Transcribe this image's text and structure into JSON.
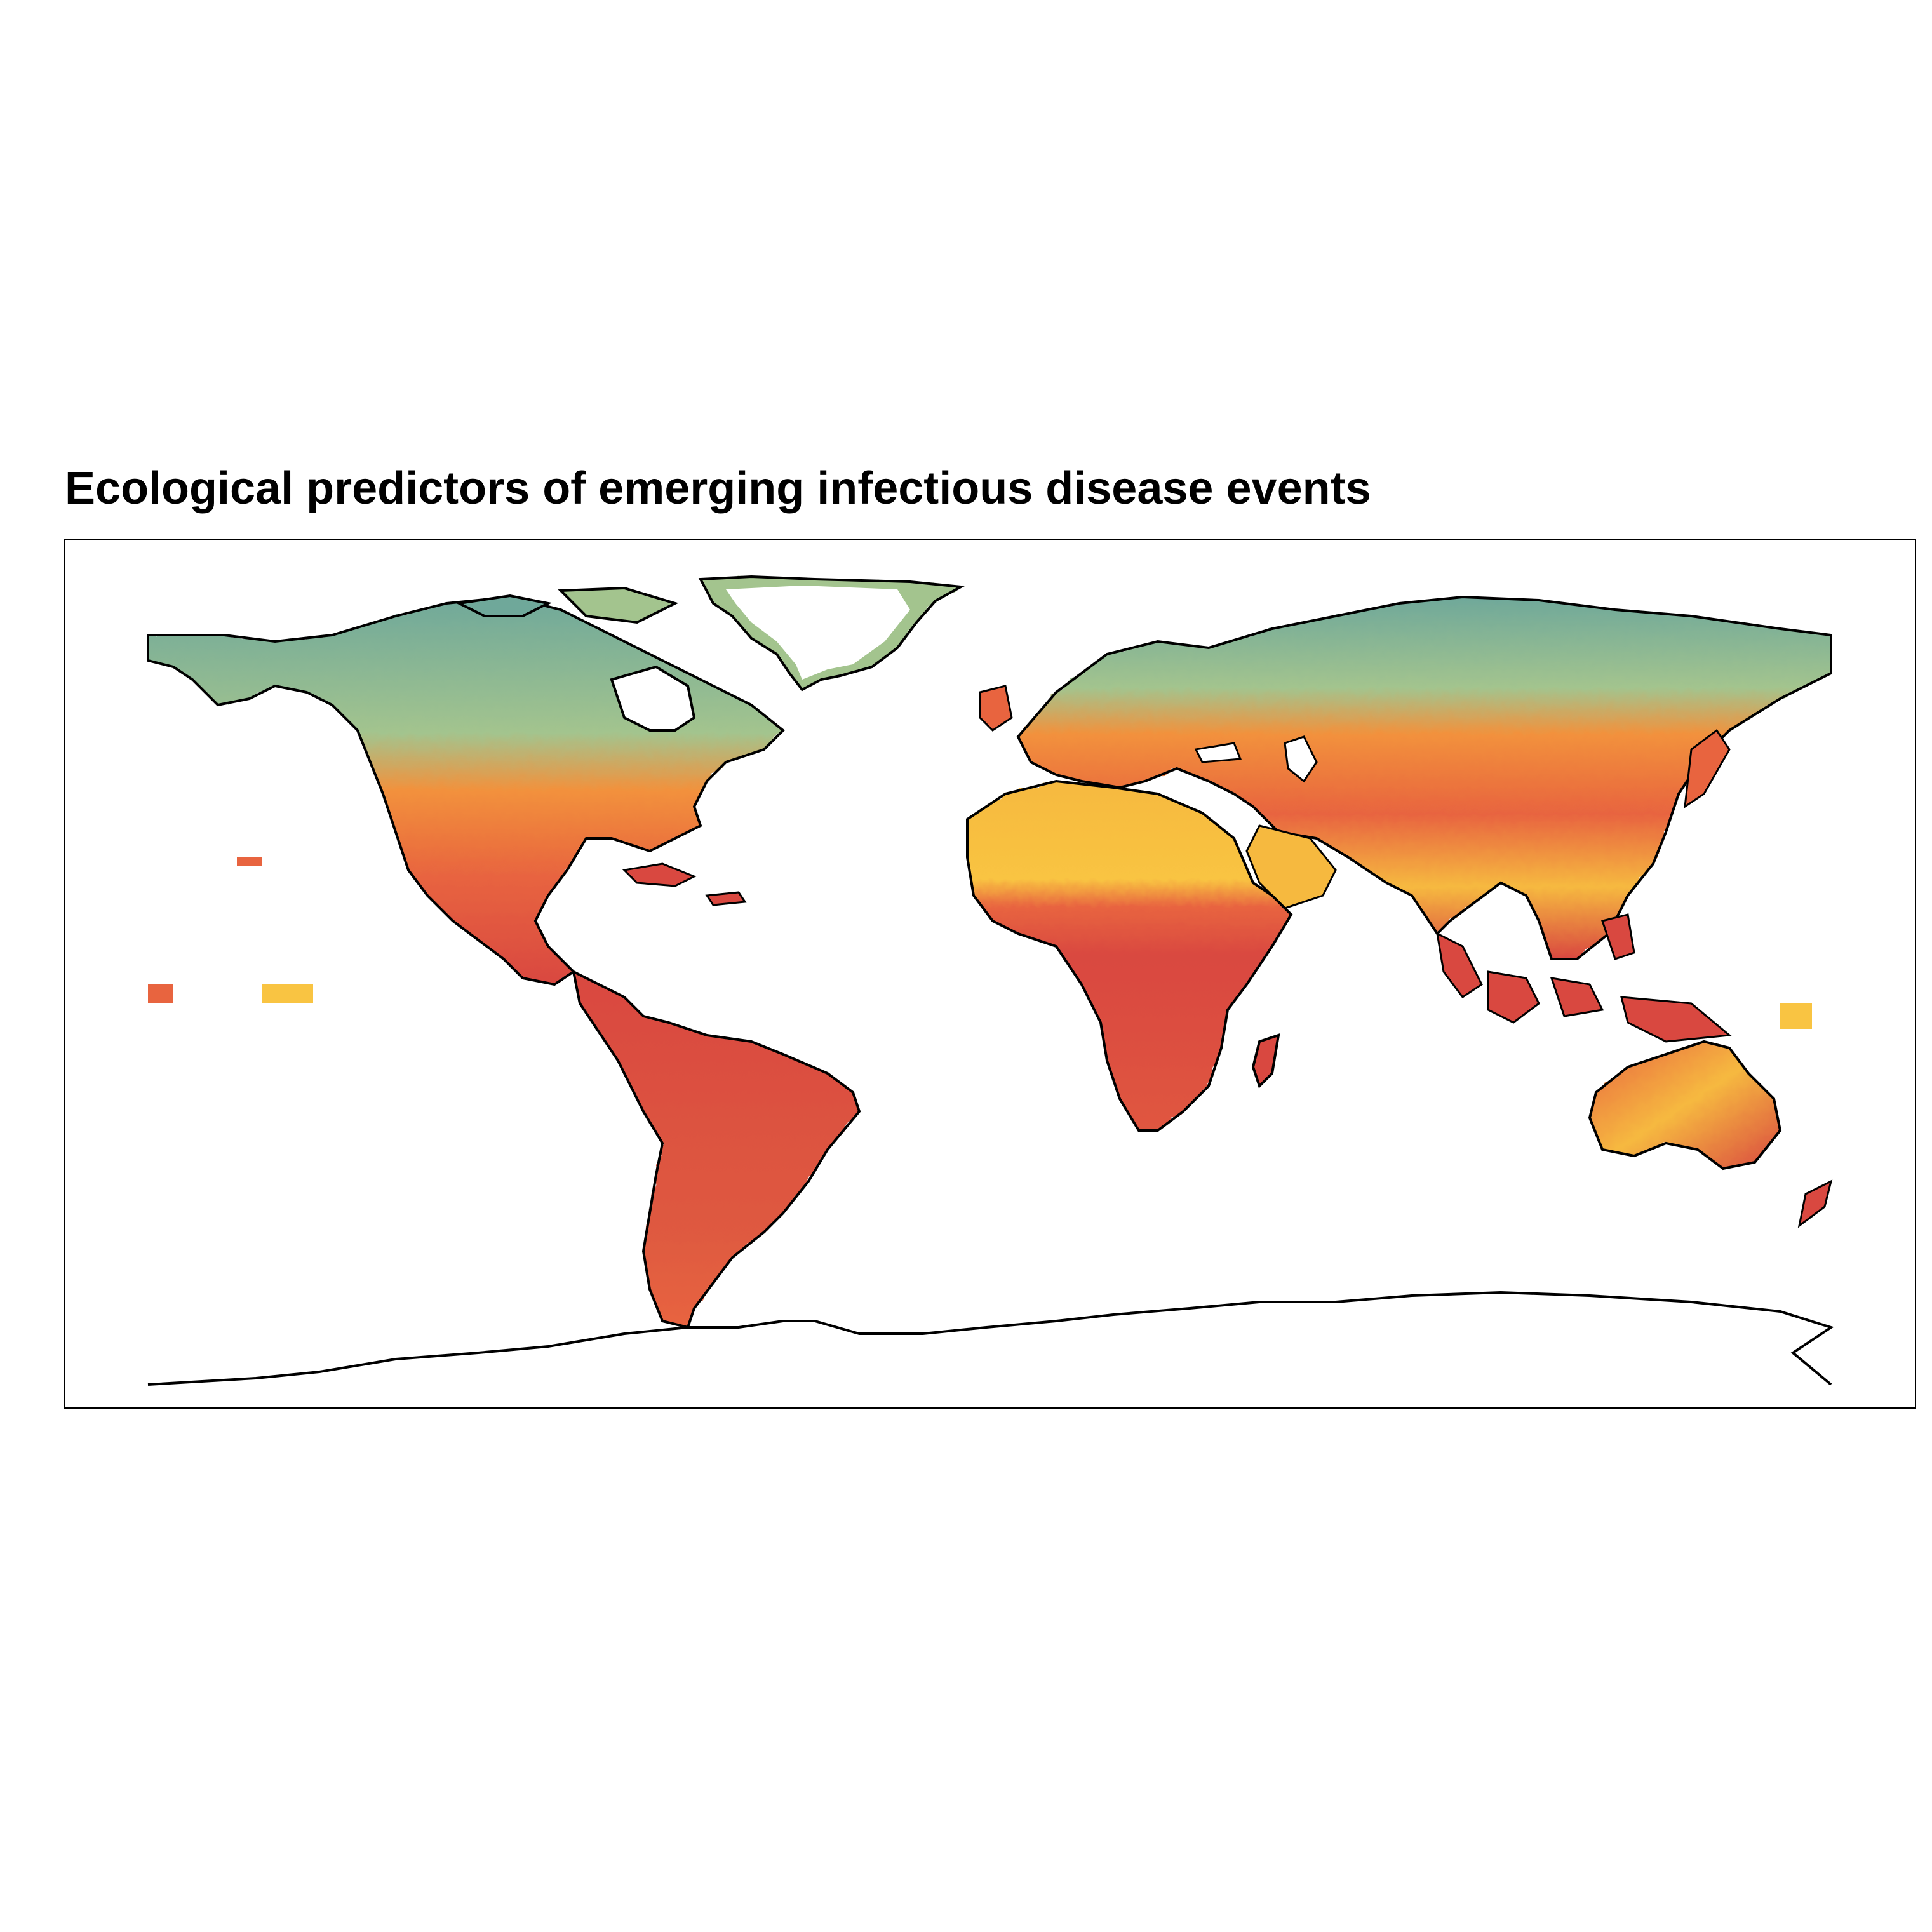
{
  "title": "Ecological predictors of emerging infectious disease events",
  "map": {
    "projection": "equirectangular",
    "extent": {
      "lon": [
        -180,
        180
      ],
      "lat": [
        -90,
        90
      ]
    },
    "palette": {
      "high": "#d94840",
      "medium_high": "#e8643f",
      "medium": "#f2913c",
      "medium_low": "#f6b93f",
      "low": "#f9c442",
      "lower": "#a3c48e",
      "lowest": "#6fa89a",
      "coast": "#000000"
    },
    "regions": [
      {
        "name": "North America north",
        "band": "lowest"
      },
      {
        "name": "North America south",
        "band": "high"
      },
      {
        "name": "Greenland",
        "band": "lowest"
      },
      {
        "name": "Central America",
        "band": "high"
      },
      {
        "name": "South America",
        "band": "high"
      },
      {
        "name": "Europe",
        "band": "medium"
      },
      {
        "name": "Sahara",
        "band": "low"
      },
      {
        "name": "Sub-Saharan Africa",
        "band": "high"
      },
      {
        "name": "Madagascar",
        "band": "high"
      },
      {
        "name": "Middle East",
        "band": "medium_low"
      },
      {
        "name": "Siberia",
        "band": "lowest"
      },
      {
        "name": "Central Asia",
        "band": "medium"
      },
      {
        "name": "South Asia",
        "band": "medium_high"
      },
      {
        "name": "Southeast Asia",
        "band": "high"
      },
      {
        "name": "Maritime Southeast Asia",
        "band": "high"
      },
      {
        "name": "Australia",
        "band": "medium_high"
      },
      {
        "name": "New Zealand",
        "band": "high"
      },
      {
        "name": "Hawaii",
        "band": "high"
      },
      {
        "name": "Pacific islands",
        "band": "low"
      }
    ]
  }
}
